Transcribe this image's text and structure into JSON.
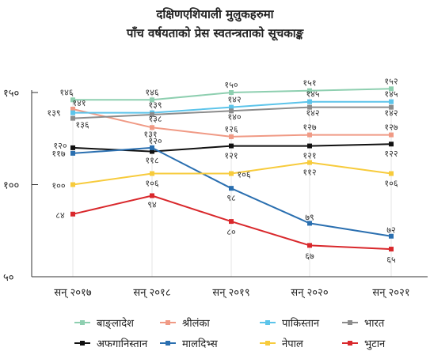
{
  "chart_data": {
    "type": "line",
    "title": "दक्षिणएशियाली मुलुकहरुमा",
    "subtitle": "पाँच वर्षयताको प्रेस स्वतन्त्रताको सूचकाङ्क",
    "categories": [
      "सन् २०१७",
      "सन् २०१८",
      "सन् २०१९",
      "सन् २०२०",
      "सन् २०२१"
    ],
    "ylim": [
      50,
      150
    ],
    "yticks": [
      150,
      100,
      50
    ],
    "ytick_labels": [
      "१५०",
      "१००",
      "५०"
    ],
    "grid": "vertical",
    "legend_position": "bottom",
    "series": [
      {
        "name": "बाङ्लादेश",
        "color": "#8ecfb0",
        "values": [
          146,
          146,
          150,
          151,
          152
        ],
        "labels": [
          "१४६",
          "१४६",
          "१५०",
          "१५१",
          "१५२"
        ]
      },
      {
        "name": "श्रीलंका",
        "color": "#f09a85",
        "values": [
          141,
          131,
          126,
          127,
          127
        ],
        "labels": [
          "१४१",
          "१३१",
          "१२६",
          "१२७",
          "१२७"
        ]
      },
      {
        "name": "पाकिस्तान",
        "color": "#5cc4ea",
        "values": [
          139,
          139,
          142,
          145,
          145
        ],
        "labels": [
          "१३९",
          "१३९",
          "१४२",
          "१४५",
          "१४५"
        ]
      },
      {
        "name": "भारत",
        "color": "#8c8c8c",
        "values": [
          136,
          138,
          140,
          142,
          142
        ],
        "labels": [
          "१३६",
          "१३८",
          "१४०",
          "१४२",
          "१४२"
        ]
      },
      {
        "name": "अफगानिस्तान",
        "color": "#111111",
        "values": [
          120,
          118,
          121,
          121,
          122
        ],
        "labels": [
          "१२०",
          "११८",
          "१२१",
          "१२१",
          "१२२"
        ]
      },
      {
        "name": "मालदिभ्स",
        "color": "#2a6fb0",
        "values": [
          117,
          120,
          98,
          79,
          72
        ],
        "labels": [
          "११७",
          "१२०",
          "९८",
          "७९",
          "७२"
        ]
      },
      {
        "name": "नेपाल",
        "color": "#f7cb3c",
        "values": [
          100,
          106,
          106,
          112,
          106
        ],
        "labels": [
          "१००",
          "१०६",
          "१०६",
          "११२",
          "१०६"
        ]
      },
      {
        "name": "भुटान",
        "color": "#d9282c",
        "values": [
          84,
          94,
          80,
          67,
          65
        ],
        "labels": [
          "८४",
          "९४",
          "८०",
          "६७",
          "६५"
        ]
      }
    ]
  }
}
